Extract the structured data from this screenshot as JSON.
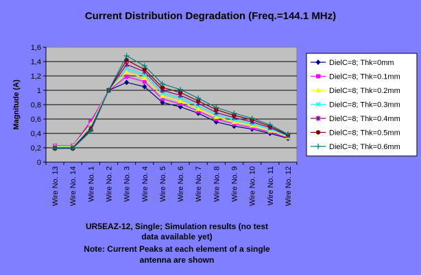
{
  "chart_data": {
    "type": "line",
    "title": "Current Distribution Degradation (Freq.=144.1 MHz)",
    "xlabel": "",
    "ylabel": "Magnitude (A)",
    "ylim": [
      0,
      1.6
    ],
    "yticks": [
      "0",
      "0,2",
      "0,4",
      "0,6",
      "0,8",
      "1",
      "1,2",
      "1,4",
      "1,6"
    ],
    "categories": [
      "Wire No. 13",
      "Wire No. 14",
      "Wire No. 1",
      "Wire No. 2",
      "Wire No. 3",
      "Wire No. 4",
      "Wire No. 5",
      "Wire No. 6",
      "Wire No. 7",
      "Wire No. 8",
      "Wire No. 9",
      "Wire No. 10",
      "Wire No. 11",
      "Wire No. 12"
    ],
    "grid": "horizontal",
    "legend_position": "right",
    "series": [
      {
        "name": "DielC=8; Thk=0mm",
        "color": "#000080",
        "marker": "diamond",
        "values": [
          0.22,
          0.22,
          0.56,
          1.0,
          1.11,
          1.05,
          0.83,
          0.77,
          0.68,
          0.56,
          0.5,
          0.46,
          0.4,
          0.33
        ]
      },
      {
        "name": "DielC=8; Thk=0.1mm",
        "color": "#FF00FF",
        "marker": "square",
        "values": [
          0.23,
          0.23,
          0.57,
          1.0,
          1.19,
          1.12,
          0.88,
          0.81,
          0.71,
          0.6,
          0.53,
          0.48,
          0.42,
          0.34
        ]
      },
      {
        "name": "DielC=8; Thk=0.2mm",
        "color": "#FFFF00",
        "marker": "triangle",
        "values": [
          0.22,
          0.22,
          0.53,
          1.0,
          1.25,
          1.17,
          0.92,
          0.85,
          0.74,
          0.63,
          0.56,
          0.51,
          0.44,
          0.35
        ]
      },
      {
        "name": "DielC=8; Thk=0.3mm",
        "color": "#00FFFF",
        "marker": "x",
        "values": [
          0.21,
          0.21,
          0.5,
          1.0,
          1.3,
          1.22,
          0.96,
          0.89,
          0.78,
          0.66,
          0.59,
          0.53,
          0.46,
          0.36
        ]
      },
      {
        "name": "DielC=8; Thk=0.4mm",
        "color": "#800080",
        "marker": "star",
        "values": [
          0.2,
          0.2,
          0.47,
          1.0,
          1.36,
          1.26,
          1.0,
          0.93,
          0.82,
          0.69,
          0.62,
          0.56,
          0.48,
          0.37
        ]
      },
      {
        "name": "DielC=8; Thk=0.5mm",
        "color": "#800000",
        "marker": "circle",
        "values": [
          0.19,
          0.19,
          0.45,
          1.0,
          1.42,
          1.29,
          1.04,
          0.97,
          0.85,
          0.73,
          0.65,
          0.59,
          0.5,
          0.38
        ]
      },
      {
        "name": "DielC=8; Thk=0.6mm",
        "color": "#008080",
        "marker": "plus",
        "values": [
          0.19,
          0.19,
          0.43,
          1.0,
          1.48,
          1.34,
          1.09,
          1.01,
          0.89,
          0.76,
          0.68,
          0.61,
          0.52,
          0.39
        ]
      }
    ],
    "caption": [
      "UR5EAZ-12, Single; Simulation results  (no test",
      "data available yet)",
      "Note: Current Peaks at each element of a single",
      "antenna are shown"
    ],
    "colors": {
      "background": "#7F7FFF",
      "plot_area": "#C0C0C0",
      "legend_bg": "#FFFFFF"
    }
  }
}
